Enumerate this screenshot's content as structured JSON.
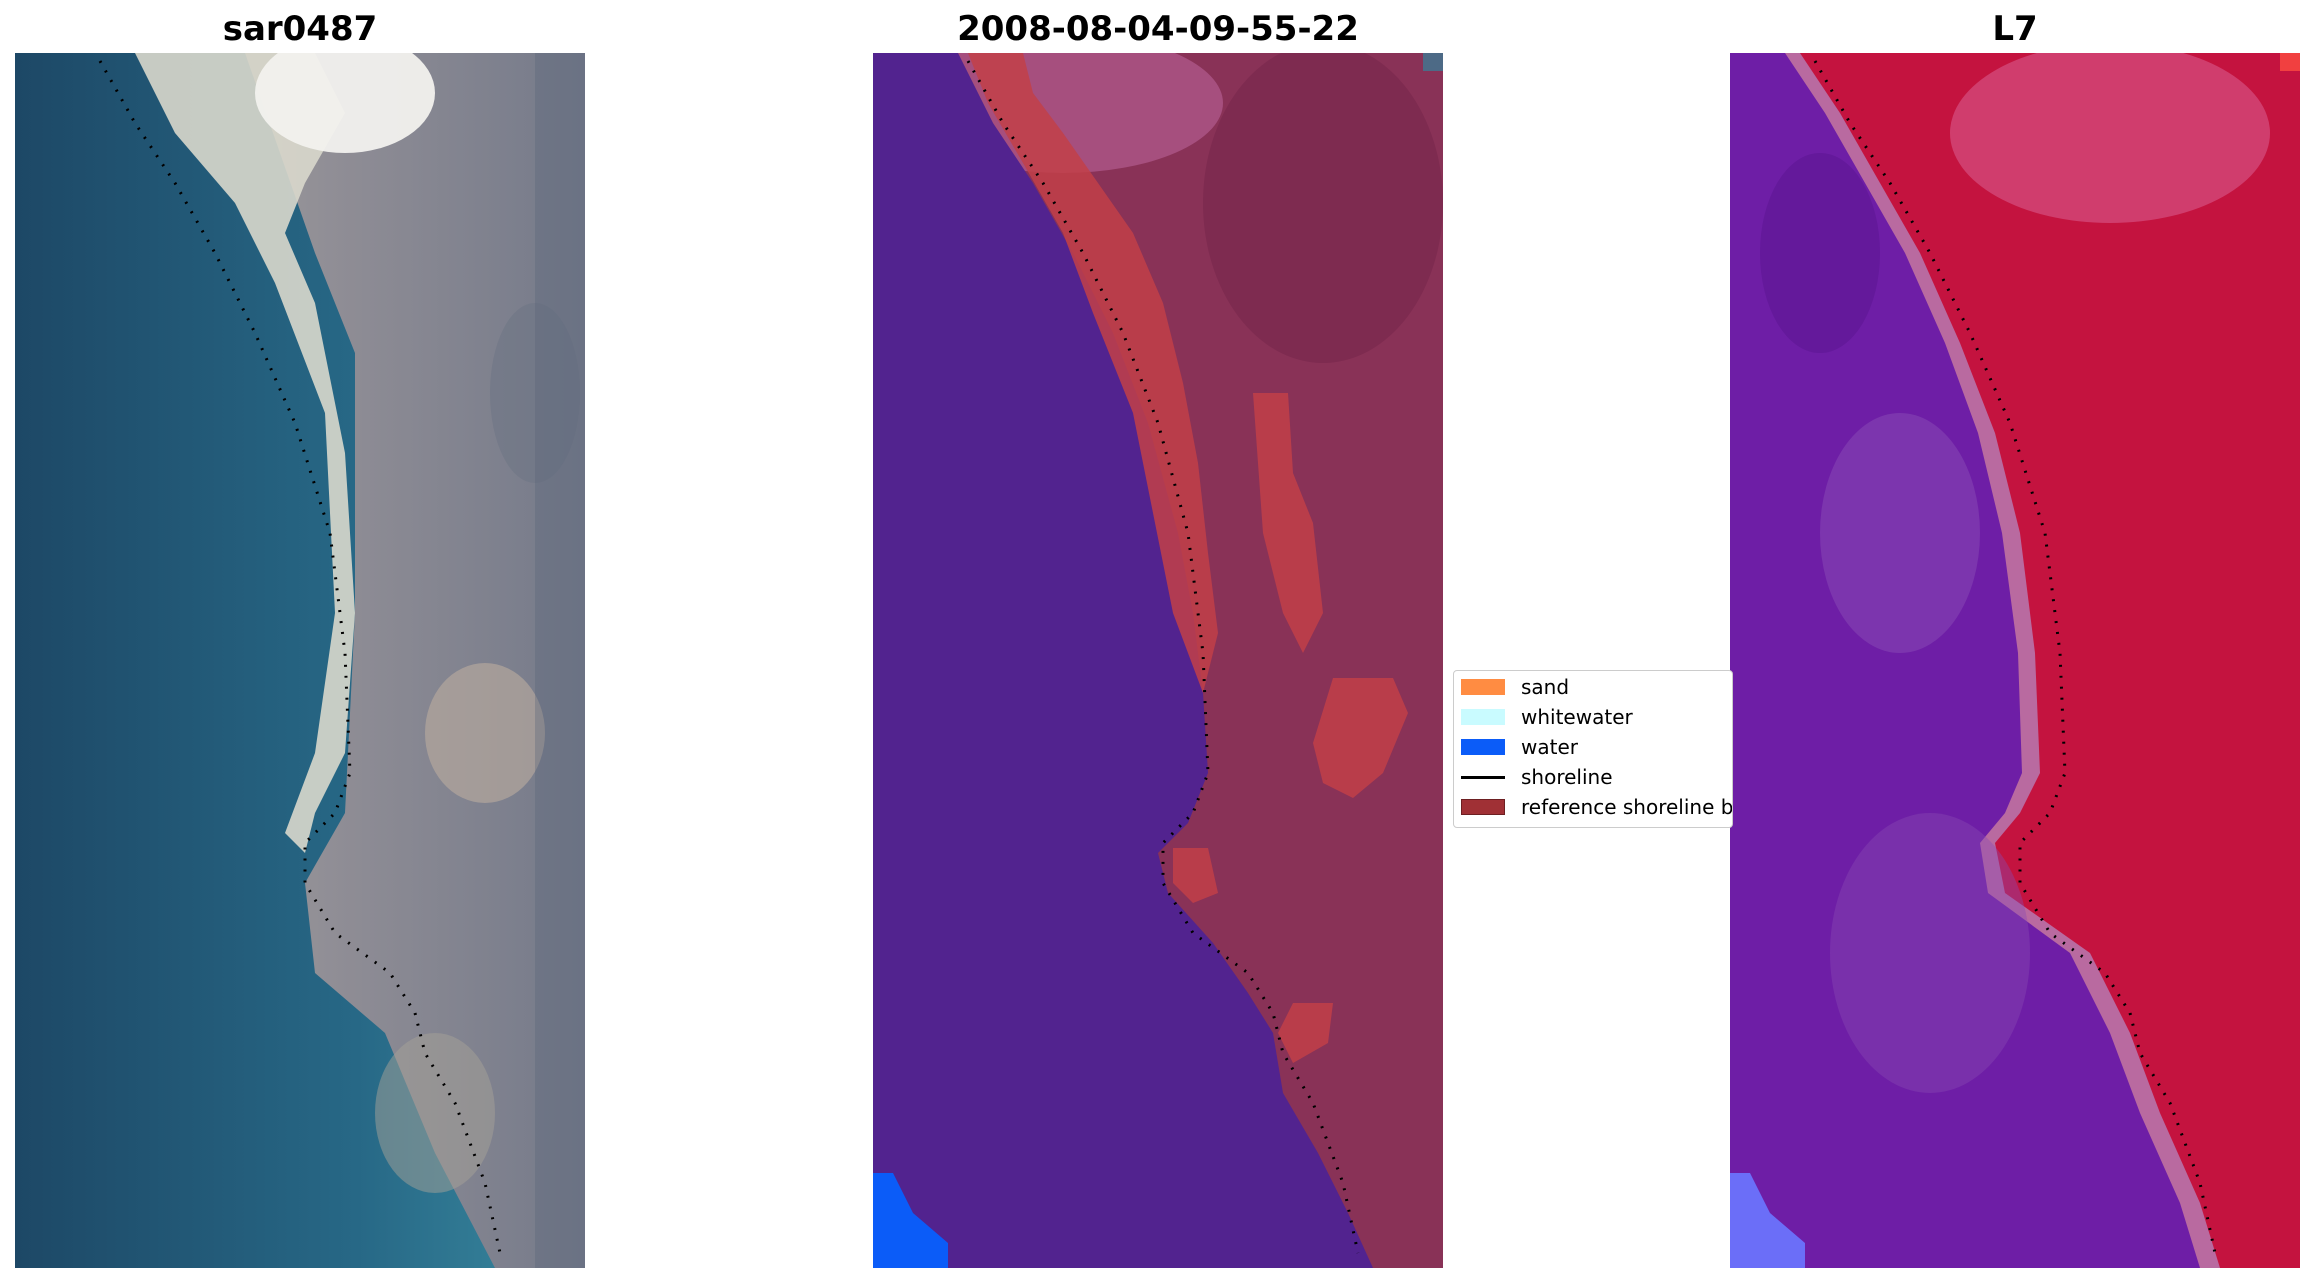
{
  "panels": [
    {
      "title": "sar0487"
    },
    {
      "title": "2008-08-04-09-55-22"
    },
    {
      "title": "L7"
    }
  ],
  "legend": {
    "items": [
      {
        "label": "sand",
        "color": "#ff8c42",
        "kind": "patch"
      },
      {
        "label": "whitewater",
        "color": "#c9fbff",
        "kind": "patch"
      },
      {
        "label": "water",
        "color": "#0b5cf8",
        "kind": "patch"
      },
      {
        "label": "shoreline",
        "color": "#000000",
        "kind": "line"
      },
      {
        "label": "reference shoreline b",
        "color": "#a03035",
        "kind": "patch"
      }
    ]
  },
  "colors": {
    "rgb_water": "#1f4b6b",
    "rgb_shallow": "#2f7d96",
    "rgb_beach": "#e9e6d8",
    "rgb_land": "#8c8c95",
    "classified_water": "#52238f",
    "classified_land": "#893257",
    "classified_land_light": "#b25b8e",
    "reference_shoreline_buffer": "#c24048",
    "water_class": "#0b5cf8",
    "ndwi_water": "#6e1ea6",
    "ndwi_land": "#c4133f",
    "ndwi_transition": "#b96aa0",
    "ndwi_corner": "#6b6ef8"
  }
}
